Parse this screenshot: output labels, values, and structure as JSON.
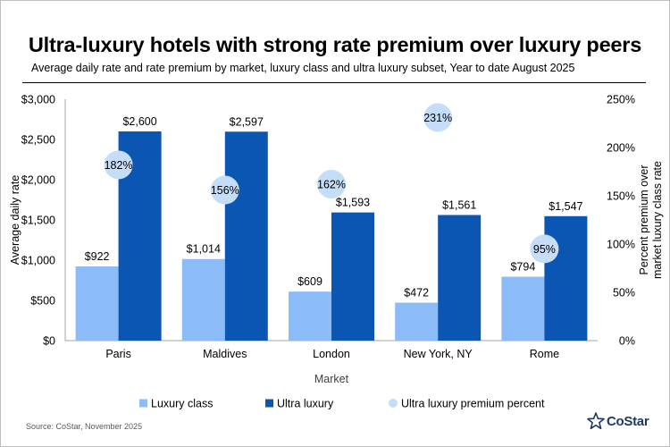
{
  "title": "Ultra-luxury hotels with strong rate premium over luxury peers",
  "subtitle": "Average daily rate and rate premium by market, luxury class and ultra luxury subset, Year to date August 2025",
  "source": "Source: CoStar, November 2025",
  "logo_text": "CoStar",
  "logo_icon": "costar-star-icon",
  "colors": {
    "luxury": "#8bbcf8",
    "ultra": "#0b55b3",
    "premium": "#c5ddf7"
  },
  "chart_data": {
    "type": "bar",
    "categories": [
      "Paris",
      "Maldives",
      "London",
      "New York, NY",
      "Rome"
    ],
    "series": [
      {
        "name": "Luxury class",
        "values": [
          922,
          1014,
          609,
          472,
          794
        ],
        "labels": [
          "$922",
          "$1,014",
          "$609",
          "$472",
          "$794"
        ]
      },
      {
        "name": "Ultra luxury",
        "values": [
          2600,
          2597,
          1593,
          1561,
          1547
        ],
        "labels": [
          "$2,600",
          "$2,597",
          "$1,593",
          "$1,561",
          "$1,547"
        ]
      },
      {
        "name": "Ultra luxury premium percent",
        "type": "scatter",
        "axis": "right",
        "values": [
          182,
          156,
          162,
          231,
          95
        ],
        "labels": [
          "182%",
          "156%",
          "162%",
          "231%",
          "95%"
        ]
      }
    ],
    "xlabel": "Market",
    "ylabel": "Average daily rate",
    "y2label_lines": [
      "Percent premium over",
      "market luxury class rate"
    ],
    "ylim": [
      0,
      3000
    ],
    "yticks": [
      "$0",
      "$500",
      "$1,000",
      "$1,500",
      "$2,000",
      "$2,500",
      "$3,000"
    ],
    "y2lim": [
      0,
      250
    ],
    "y2ticks": [
      "0%",
      "50%",
      "100%",
      "150%",
      "200%",
      "250%"
    ],
    "grid": false,
    "legend_position": "bottom"
  }
}
